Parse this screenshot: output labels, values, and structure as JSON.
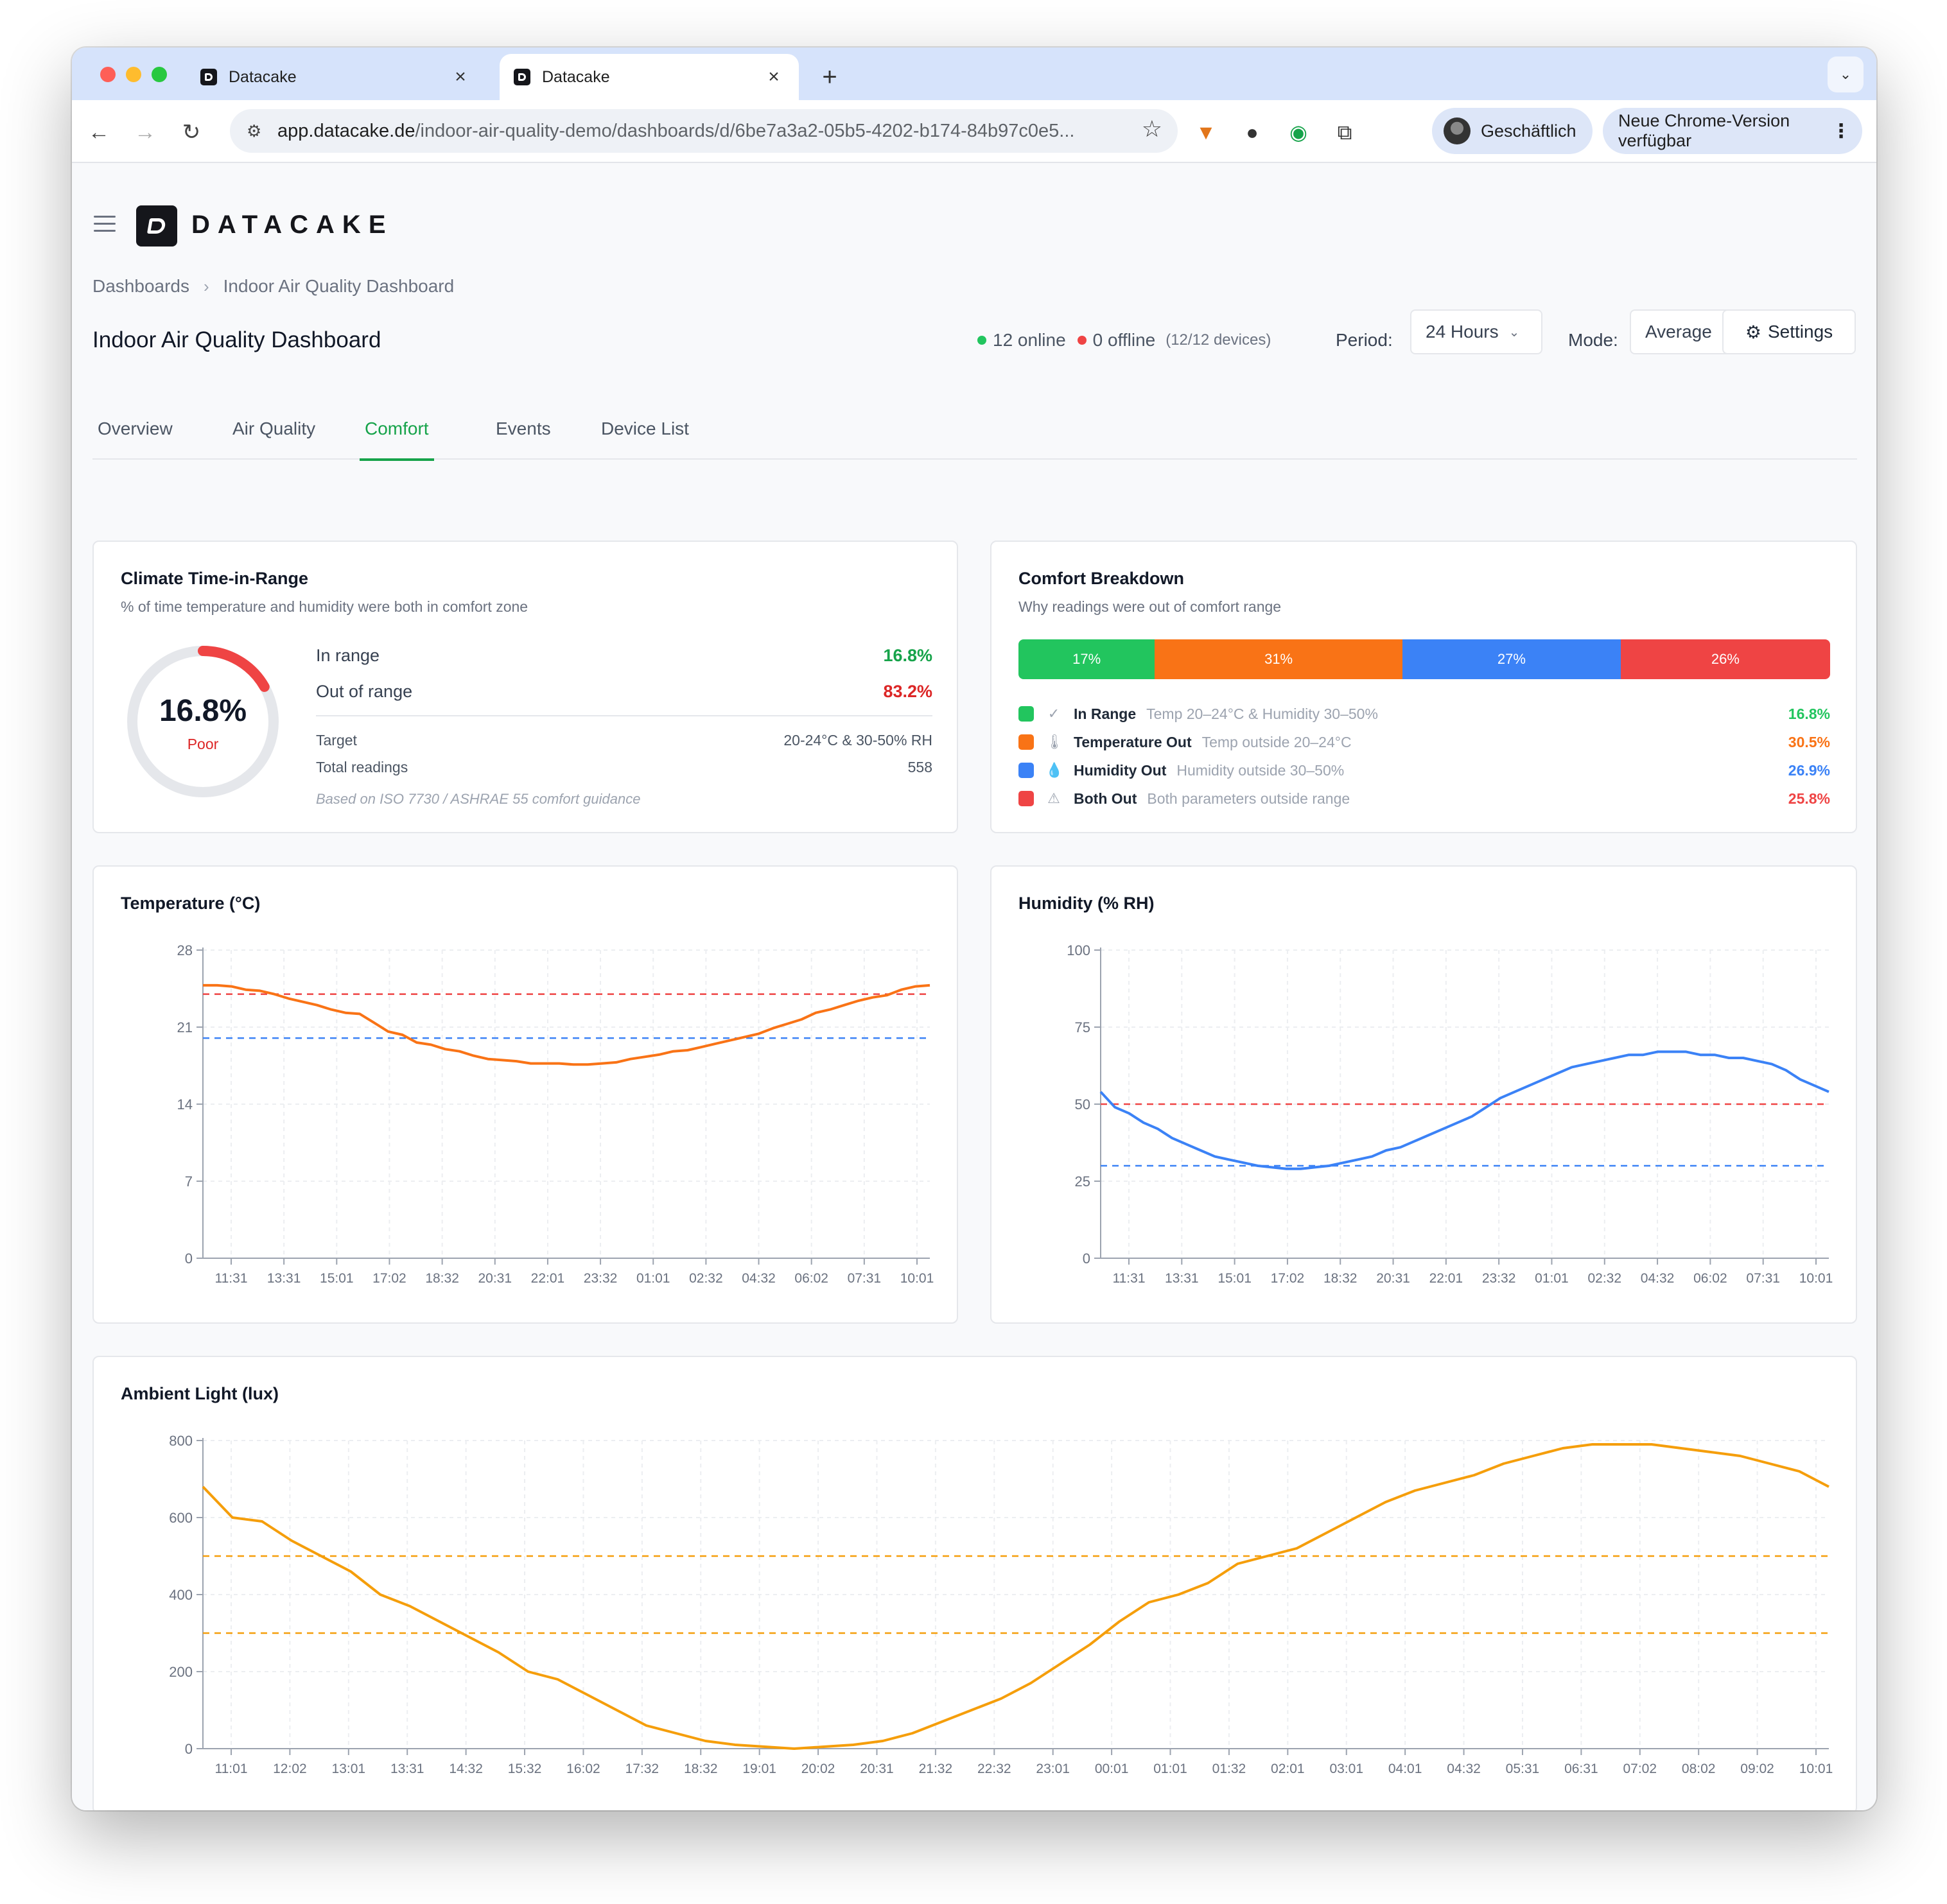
{
  "browser": {
    "tabs": [
      {
        "title": "Datacake",
        "active": false
      },
      {
        "title": "Datacake",
        "active": true
      }
    ],
    "url_host": "app.datacake.de",
    "url_path": "/indoor-air-quality-demo/dashboards/d/6be7a3a2-05b5-4202-b174-84b97c0e5...",
    "profile_label": "Geschäftlich",
    "update_label": "Neue Chrome-Version verfügbar"
  },
  "app": {
    "logo_text": "DATACAKE",
    "breadcrumb": [
      "Dashboards",
      "Indoor Air Quality Dashboard"
    ],
    "title": "Indoor Air Quality Dashboard",
    "status": {
      "online": "12 online",
      "offline": "0 offline",
      "devices": "(12/12 devices)",
      "online_color": "#22c55e",
      "offline_color": "#ef4444"
    },
    "period_label": "Period:",
    "period_value": "24 Hours",
    "mode_label": "Mode:",
    "mode_value": "Average",
    "settings_label": "Settings",
    "nav_tabs": [
      "Overview",
      "Air Quality",
      "Comfort",
      "Events",
      "Device List"
    ],
    "active_tab": "Comfort"
  },
  "climate": {
    "title": "Climate Time-in-Range",
    "subtitle": "% of time temperature and humidity were both in comfort zone",
    "donut_value": "16.8%",
    "donut_label": "Poor",
    "in_range_fraction": 0.168,
    "in_range_label": "In range",
    "in_range_value": "16.8%",
    "out_range_label": "Out of range",
    "out_range_value": "83.2%",
    "target_label": "Target",
    "target_value": "20-24°C & 30-50% RH",
    "readings_label": "Total readings",
    "readings_value": "558",
    "note": "Based on ISO 7730 / ASHRAE 55 comfort guidance"
  },
  "breakdown": {
    "title": "Comfort Breakdown",
    "subtitle": "Why readings were out of comfort range",
    "segments": [
      {
        "label": "17%",
        "fraction": 0.168,
        "color": "#22c55e"
      },
      {
        "label": "31%",
        "fraction": 0.305,
        "color": "#f97316"
      },
      {
        "label": "27%",
        "fraction": 0.269,
        "color": "#3b82f6"
      },
      {
        "label": "26%",
        "fraction": 0.258,
        "color": "#ef4444"
      }
    ],
    "legend": [
      {
        "name": "In Range",
        "desc": "Temp 20–24°C & Humidity 30–50%",
        "value": "16.8%",
        "color": "#22c55e",
        "icon": "check-circle-icon"
      },
      {
        "name": "Temperature Out",
        "desc": "Temp outside 20–24°C",
        "value": "30.5%",
        "color": "#f97316",
        "icon": "thermometer-icon"
      },
      {
        "name": "Humidity Out",
        "desc": "Humidity outside 30–50%",
        "value": "26.9%",
        "color": "#3b82f6",
        "icon": "droplet-icon"
      },
      {
        "name": "Both Out",
        "desc": "Both parameters outside range",
        "value": "25.8%",
        "color": "#ef4444",
        "icon": "warning-icon"
      }
    ]
  },
  "chart_data": [
    {
      "type": "line",
      "title": "Temperature (°C)",
      "color": "#f97316",
      "ylim": [
        0,
        28
      ],
      "yticks": [
        0,
        7,
        14,
        21,
        28
      ],
      "xticks": [
        "11:31",
        "13:31",
        "15:01",
        "17:02",
        "18:32",
        "20:31",
        "22:01",
        "23:32",
        "01:01",
        "02:32",
        "04:32",
        "06:02",
        "07:31",
        "10:01"
      ],
      "thresholds": [
        {
          "value": 24,
          "color": "#ef4444"
        },
        {
          "value": 20,
          "color": "#3b82f6"
        }
      ],
      "values": [
        24.8,
        24.8,
        24.7,
        24.4,
        24.3,
        24.0,
        23.6,
        23.3,
        23.0,
        22.6,
        22.3,
        22.2,
        21.4,
        20.6,
        20.3,
        19.6,
        19.4,
        19.0,
        18.8,
        18.4,
        18.1,
        18.0,
        17.9,
        17.7,
        17.7,
        17.7,
        17.6,
        17.6,
        17.7,
        17.8,
        18.1,
        18.3,
        18.5,
        18.8,
        18.9,
        19.2,
        19.5,
        19.8,
        20.1,
        20.4,
        20.9,
        21.3,
        21.7,
        22.3,
        22.6,
        23.0,
        23.4,
        23.7,
        23.9,
        24.4,
        24.7,
        24.8
      ]
    },
    {
      "type": "line",
      "title": "Humidity (% RH)",
      "color": "#3b82f6",
      "ylim": [
        0,
        100
      ],
      "yticks": [
        0,
        25,
        50,
        75,
        100
      ],
      "xticks": [
        "11:31",
        "13:31",
        "15:01",
        "17:02",
        "18:32",
        "20:31",
        "22:01",
        "23:32",
        "01:01",
        "02:32",
        "04:32",
        "06:02",
        "07:31",
        "10:01"
      ],
      "thresholds": [
        {
          "value": 50,
          "color": "#ef4444"
        },
        {
          "value": 30,
          "color": "#3b82f6"
        }
      ],
      "values": [
        54,
        49,
        47,
        44,
        42,
        39,
        37,
        35,
        33,
        32,
        31,
        30,
        29.5,
        29,
        29,
        29.5,
        30,
        31,
        32,
        33,
        35,
        36,
        38,
        40,
        42,
        44,
        46,
        49,
        52,
        54,
        56,
        58,
        60,
        62,
        63,
        64,
        65,
        66,
        66,
        67,
        67,
        67,
        66,
        66,
        65,
        65,
        64,
        63,
        61,
        58,
        56,
        54
      ]
    },
    {
      "type": "line",
      "title": "Ambient Light (lux)",
      "color": "#f59e0b",
      "ylim": [
        0,
        800
      ],
      "yticks": [
        0,
        200,
        400,
        600,
        800
      ],
      "xticks": [
        "11:01",
        "12:02",
        "13:01",
        "13:31",
        "14:32",
        "15:32",
        "16:02",
        "17:32",
        "18:32",
        "19:01",
        "20:02",
        "20:31",
        "21:32",
        "22:32",
        "23:01",
        "00:01",
        "01:01",
        "01:32",
        "02:01",
        "03:01",
        "04:01",
        "04:32",
        "05:31",
        "06:31",
        "07:02",
        "08:02",
        "09:02",
        "10:01"
      ],
      "thresholds": [
        {
          "value": 500,
          "color": "#f59e0b"
        },
        {
          "value": 300,
          "color": "#f59e0b"
        }
      ],
      "values": [
        680,
        600,
        590,
        540,
        500,
        460,
        400,
        370,
        330,
        290,
        250,
        200,
        180,
        140,
        100,
        60,
        40,
        20,
        10,
        5,
        0,
        5,
        10,
        20,
        40,
        70,
        100,
        130,
        170,
        220,
        270,
        330,
        380,
        400,
        430,
        480,
        500,
        520,
        560,
        600,
        640,
        670,
        690,
        710,
        740,
        760,
        780,
        790,
        790,
        790,
        780,
        770,
        760,
        740,
        720,
        680
      ]
    }
  ]
}
